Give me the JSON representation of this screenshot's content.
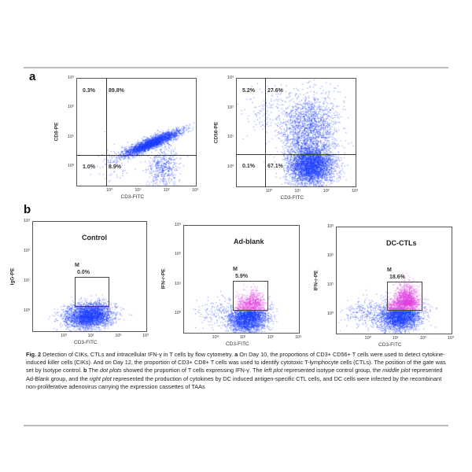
{
  "figure": {
    "panel_a_label": "a",
    "panel_b_label": "b",
    "panel_a": [
      {
        "xlabel": "CD3-FITC",
        "ylabel": "CD8-PE",
        "quadrants": {
          "upper_left": "0.3%",
          "upper_right": "89.8%",
          "lower_left": "1.0%",
          "lower_right": "8.9%"
        }
      },
      {
        "xlabel": "CD3-FITC",
        "ylabel": "CD56-PE",
        "quadrants": {
          "upper_left": "5.2%",
          "upper_right": "27.6%",
          "lower_left": "0.1%",
          "lower_right": "67.1%"
        }
      }
    ],
    "panel_b": [
      {
        "title": "Control",
        "xlabel": "CD3-FITC",
        "ylabel": "IgG-PE",
        "gate_label": "M",
        "gate_pct": "0.0%"
      },
      {
        "title": "Ad-blank",
        "xlabel": "CD3-FITC",
        "ylabel": "IFN-r-PE",
        "gate_label": "M",
        "gate_pct": "5.9%"
      },
      {
        "title": "DC-CTLs",
        "xlabel": "CD3-FITC",
        "ylabel": "IFN-r-PE",
        "gate_label": "M",
        "gate_pct": "18.6%"
      }
    ],
    "tick_labels": [
      "10⁰",
      "10¹",
      "10²",
      "10³"
    ],
    "colors": {
      "dots": "#1a3cff",
      "gated_dots": "#e040e0"
    }
  },
  "caption": {
    "fig": "Fig. 2",
    "t1": " Detection of CIKs, CTLs and intracellular IFN-γ in T cells by flow cytometry. ",
    "a": "a",
    "t2": " On Day 10, the proportions of CD3+ CD56+ T cells were used to detect cytokine-induced killer cells (CIKs). And on Day 12, the proportion of CD3+ CD8+ T cells was used to identify cytotoxic T-lymphocyte cells (CTLs). The position of the gate was set by Isotype control. ",
    "b": "b",
    "t3": " The ",
    "i1": "dot plots",
    "t4": " showed the proportion of T cells expressing IFN-γ. The ",
    "i2": "left plot",
    "t5": " represented isotype control group, the ",
    "i3": "middle plot",
    "t6": " represented Ad-Blank group, and the ",
    "i4": "right plot",
    "t7": " represented the production of cytokines by DC induced antigen-specific CTL cells, and DC cells were infected by the recombinant non-proliferative adenovirus carrying the expression cassettes of TAAs"
  }
}
